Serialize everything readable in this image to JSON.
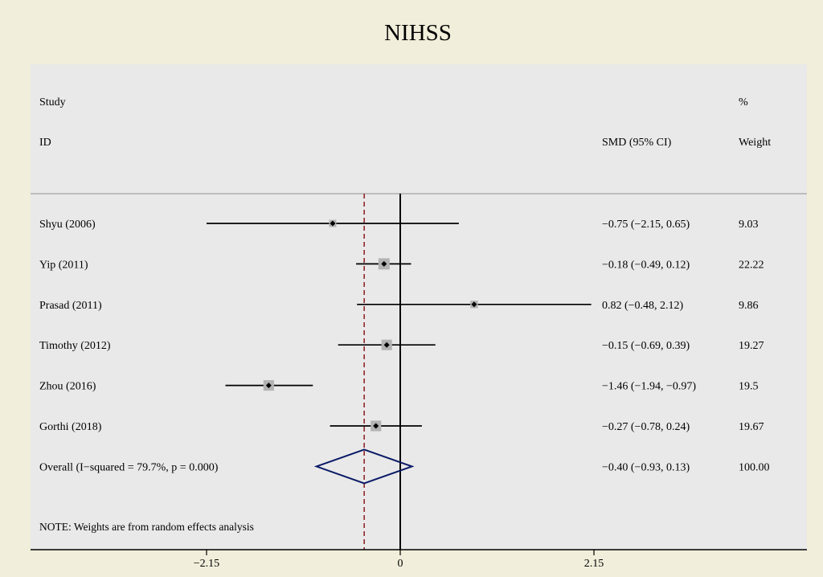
{
  "chart_data": {
    "type": "forest",
    "title": "NIHSS",
    "headers": {
      "study_line1": "Study",
      "study_line2": "ID",
      "effect": "SMD (95% CI)",
      "weight_line1": "%",
      "weight_line2": "Weight"
    },
    "studies": [
      {
        "label": "Shyu (2006)",
        "smd": -0.75,
        "lower": -2.15,
        "upper": 0.65,
        "ci_text": "−0.75 (−2.15, 0.65)",
        "weight": 9.03,
        "weight_text": "9.03"
      },
      {
        "label": "Yip (2011)",
        "smd": -0.18,
        "lower": -0.49,
        "upper": 0.12,
        "ci_text": "−0.18 (−0.49, 0.12)",
        "weight": 22.22,
        "weight_text": "22.22"
      },
      {
        "label": "Prasad (2011)",
        "smd": 0.82,
        "lower": -0.48,
        "upper": 2.12,
        "ci_text": "0.82 (−0.48, 2.12)",
        "weight": 9.86,
        "weight_text": "9.86"
      },
      {
        "label": "Timothy (2012)",
        "smd": -0.15,
        "lower": -0.69,
        "upper": 0.39,
        "ci_text": "−0.15 (−0.69, 0.39)",
        "weight": 19.27,
        "weight_text": "19.27"
      },
      {
        "label": "Zhou (2016)",
        "smd": -1.46,
        "lower": -1.94,
        "upper": -0.97,
        "ci_text": "−1.46 (−1.94, −0.97)",
        "weight": 19.5,
        "weight_text": "19.5"
      },
      {
        "label": "Gorthi (2018)",
        "smd": -0.27,
        "lower": -0.78,
        "upper": 0.24,
        "ci_text": "−0.27 (−0.78, 0.24)",
        "weight": 19.67,
        "weight_text": "19.67"
      }
    ],
    "overall": {
      "label": "Overall  (I−squared = 79.7%, p = 0.000)",
      "smd": -0.4,
      "lower": -0.93,
      "upper": 0.13,
      "ci_text": "−0.40 (−0.93, 0.13)",
      "weight_text": "100.00"
    },
    "note": "NOTE: Weights are from random effects analysis",
    "x_ticks": [
      {
        "value": -2.15,
        "label": "−2.15"
      },
      {
        "value": 0,
        "label": "0"
      },
      {
        "value": 2.15,
        "label": "2.15"
      }
    ],
    "null_line": 0,
    "colors": {
      "page_bg": "#f1eedb",
      "plot_bg": "#e9e9e9",
      "header_rule": "#bdbdbd",
      "ci_line": "#000000",
      "weight_box": "#b3b3b3",
      "point": "#000000",
      "diamond": "#0a1a66",
      "overall_line": "#8b1a1a"
    }
  }
}
